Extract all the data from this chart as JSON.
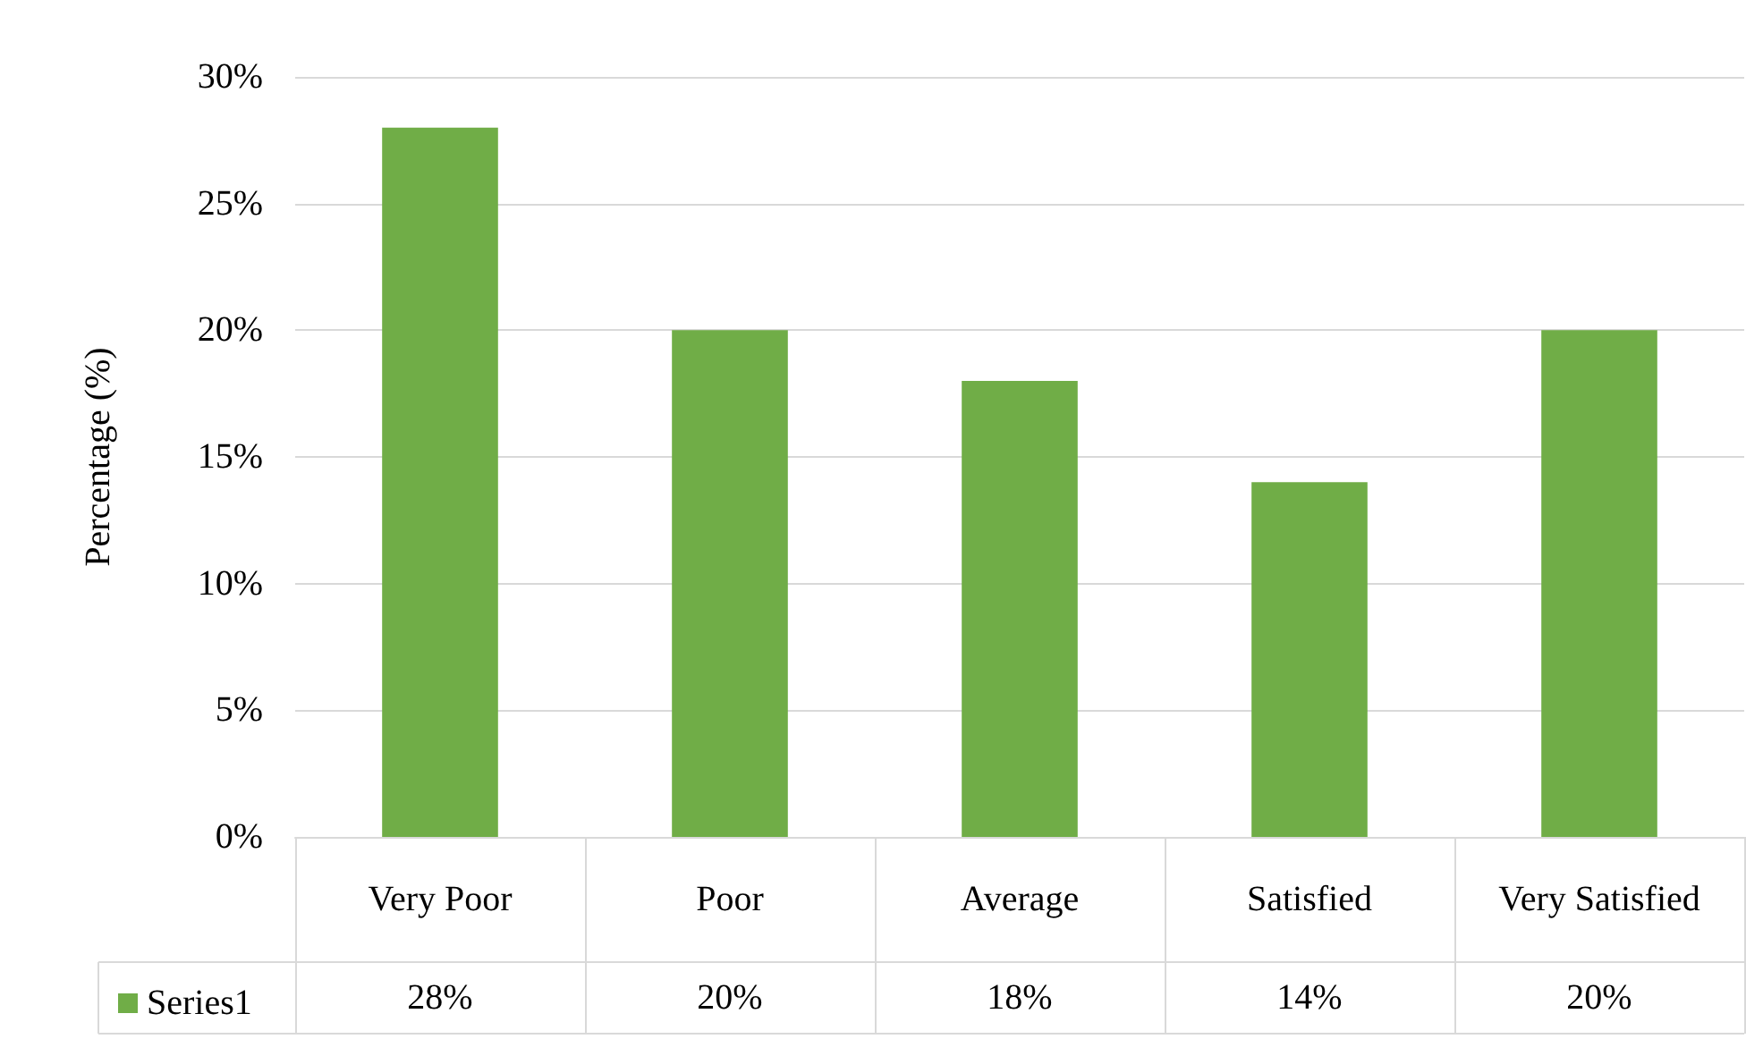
{
  "chart_data": {
    "type": "bar",
    "ylabel": "Percentage (%)",
    "categories": [
      "Very Poor",
      "Poor",
      "Average",
      "Satisfied",
      "Very Satisfied"
    ],
    "series": [
      {
        "name": "Series1",
        "color": "#70ad47",
        "values": [
          28,
          20,
          18,
          14,
          20
        ],
        "value_labels": [
          "28%",
          "20%",
          "18%",
          "14%",
          "20%"
        ]
      }
    ],
    "ylim": [
      0,
      30
    ],
    "yticks": [
      {
        "value": 0,
        "label": "0%"
      },
      {
        "value": 5,
        "label": "5%"
      },
      {
        "value": 10,
        "label": "10%"
      },
      {
        "value": 15,
        "label": "15%"
      },
      {
        "value": 20,
        "label": "20%"
      },
      {
        "value": 25,
        "label": "25%"
      },
      {
        "value": 30,
        "label": "30%"
      }
    ],
    "grid": "y",
    "legend": "bottom left"
  }
}
